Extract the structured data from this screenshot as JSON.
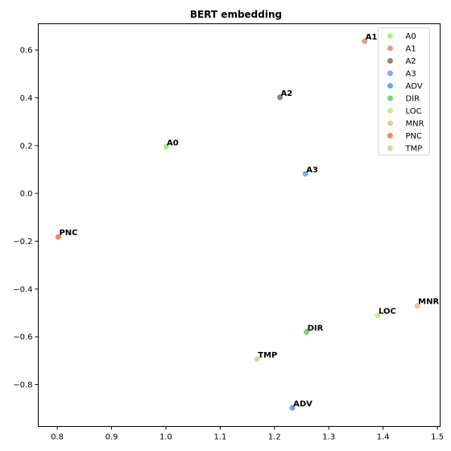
{
  "chart_data": {
    "type": "scatter",
    "title": "BERT embedding",
    "xlabel": "",
    "ylabel": "",
    "xlim": [
      0.765,
      1.505
    ],
    "ylim": [
      -0.975,
      0.71
    ],
    "xticks": [
      0.8,
      0.9,
      1.0,
      1.1,
      1.2,
      1.3,
      1.4,
      1.5
    ],
    "xtick_labels": [
      "0.8",
      "0.9",
      "1.0",
      "1.1",
      "1.2",
      "1.3",
      "1.4",
      "1.5"
    ],
    "yticks": [
      -0.8,
      -0.6,
      -0.4,
      -0.2,
      0.0,
      0.2,
      0.4,
      0.6
    ],
    "ytick_labels": [
      "−0.8",
      "−0.6",
      "−0.4",
      "−0.2",
      "0.0",
      "0.2",
      "0.4",
      "0.6"
    ],
    "grid": false,
    "legend_position": "top-right",
    "series": [
      {
        "name": "A0",
        "x": 1.0,
        "y": 0.195,
        "color": "#90ee75"
      },
      {
        "name": "A1",
        "x": 1.366,
        "y": 0.637,
        "color": "#e08a7a"
      },
      {
        "name": "A2",
        "x": 1.21,
        "y": 0.402,
        "color": "#7a6d62"
      },
      {
        "name": "A3",
        "x": 1.257,
        "y": 0.082,
        "color": "#6f9be3"
      },
      {
        "name": "ADV",
        "x": 1.233,
        "y": -0.897,
        "color": "#4f97e6"
      },
      {
        "name": "DIR",
        "x": 1.259,
        "y": -0.58,
        "color": "#5fcf4f"
      },
      {
        "name": "LOC",
        "x": 1.39,
        "y": -0.51,
        "color": "#b8ec7a"
      },
      {
        "name": "MNR",
        "x": 1.463,
        "y": -0.47,
        "color": "#e6c27a"
      },
      {
        "name": "PNC",
        "x": 0.802,
        "y": -0.182,
        "color": "#f07446"
      },
      {
        "name": "TMP",
        "x": 1.168,
        "y": -0.693,
        "color": "#c5d58e"
      }
    ]
  }
}
